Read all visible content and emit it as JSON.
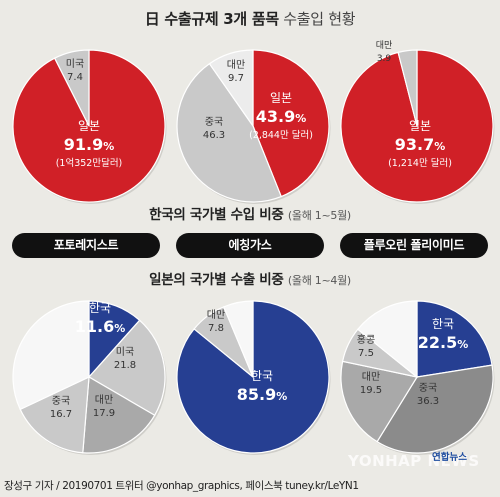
{
  "header": {
    "title_strong": "日 수출규제 3개 품목",
    "title_light": "수출입 현황"
  },
  "sections": {
    "import_title": "한국의 국가별 수입 비중",
    "import_period": "(올해 1~5월)",
    "export_title": "일본의 국가별 수출 비중",
    "export_period": "(올해 1~4월)"
  },
  "items": [
    "포토레지스트",
    "에칭가스",
    "플루오린 폴리이미드"
  ],
  "footer": {
    "credit": "장성구 기자 / 20190701 트위터 @yonhap_graphics, 페이스북 tuney.kr/LeYN1",
    "watermark": "YONHAP NEWS",
    "logo_text": "연합뉴스"
  },
  "colors": {
    "japan_red": "#d02027",
    "korea_blue": "#263f92",
    "gray_light": "#c9c9c9",
    "gray_mid": "#a9a9a9",
    "gray_dark": "#8b8b8b",
    "white_slice": "#f7f7f7",
    "background": "#ebeae5"
  },
  "chart_data": [
    {
      "type": "pie",
      "title": "포토레지스트 — 한국의 국가별 수입 비중",
      "slices": [
        {
          "label": "일본",
          "value": 91.9,
          "note": "(1억352만달러)",
          "color": "#d02027"
        },
        {
          "label": "미국",
          "value": 7.4,
          "color": "#c9c9c9"
        }
      ]
    },
    {
      "type": "pie",
      "title": "에칭가스 — 한국의 국가별 수입 비중",
      "slices": [
        {
          "label": "일본",
          "value": 43.9,
          "note": "(2,844만 달러)",
          "color": "#d02027"
        },
        {
          "label": "중국",
          "value": 46.3,
          "color": "#c9c9c9"
        },
        {
          "label": "대만",
          "value": 9.7,
          "color": "#ececec"
        }
      ]
    },
    {
      "type": "pie",
      "title": "플루오린 폴리이미드 — 한국의 국가별 수입 비중",
      "slices": [
        {
          "label": "일본",
          "value": 93.7,
          "note": "(1,214만 달러)",
          "color": "#d02027"
        },
        {
          "label": "대만",
          "value": 3.9,
          "color": "#c9c9c9"
        }
      ]
    },
    {
      "type": "pie",
      "title": "포토레지스트 — 일본의 국가별 수출 비중",
      "slices": [
        {
          "label": "한국",
          "value": 11.6,
          "color": "#263f92"
        },
        {
          "label": "미국",
          "value": 21.8,
          "color": "#c9c9c9"
        },
        {
          "label": "대만",
          "value": 17.9,
          "color": "#a9a9a9"
        },
        {
          "label": "중국",
          "value": 16.7,
          "color": "#c9c9c9"
        },
        {
          "label": "",
          "value": 32.0,
          "color": "#f7f7f7"
        }
      ]
    },
    {
      "type": "pie",
      "title": "에칭가스 — 일본의 국가별 수출 비중",
      "slices": [
        {
          "label": "한국",
          "value": 85.9,
          "color": "#263f92"
        },
        {
          "label": "대만",
          "value": 7.8,
          "color": "#c9c9c9"
        },
        {
          "label": "",
          "value": 6.3,
          "color": "#f7f7f7"
        }
      ]
    },
    {
      "type": "pie",
      "title": "플루오린 폴리이미드 — 일본의 국가별 수출 비중",
      "slices": [
        {
          "label": "한국",
          "value": 22.5,
          "color": "#263f92"
        },
        {
          "label": "중국",
          "value": 36.3,
          "color": "#8b8b8b"
        },
        {
          "label": "대만",
          "value": 19.5,
          "color": "#a9a9a9"
        },
        {
          "label": "홍콩",
          "value": 7.5,
          "color": "#c9c9c9"
        },
        {
          "label": "",
          "value": 14.2,
          "color": "#f7f7f7"
        }
      ]
    }
  ]
}
